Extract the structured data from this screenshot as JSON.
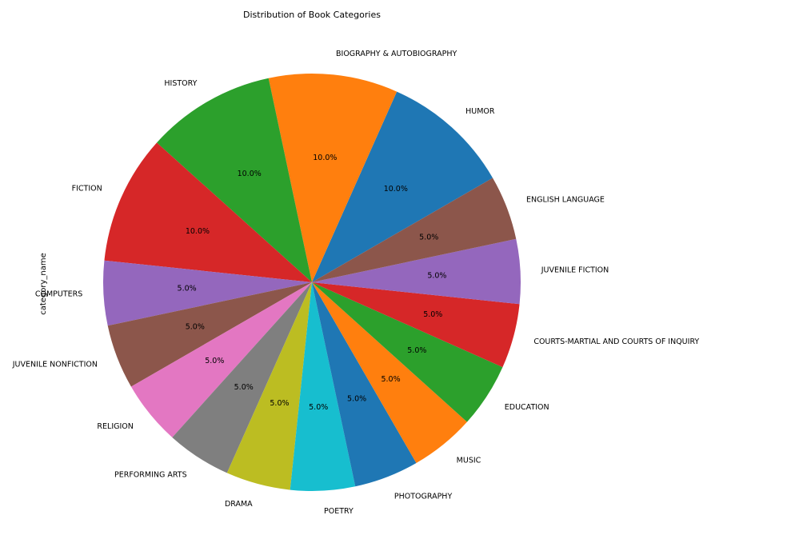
{
  "chart_data": {
    "type": "pie",
    "title": "Distribution of Book Categories",
    "ylabel": "category_name",
    "start_angle_deg": 30,
    "direction": "counterclockwise",
    "slices": [
      {
        "label": "HUMOR",
        "value": 10.0,
        "pct": "10.0%",
        "color": "#1f77b4"
      },
      {
        "label": "BIOGRAPHY & AUTOBIOGRAPHY",
        "value": 10.0,
        "pct": "10.0%",
        "color": "#ff7f0e"
      },
      {
        "label": "HISTORY",
        "value": 10.0,
        "pct": "10.0%",
        "color": "#2ca02c"
      },
      {
        "label": "FICTION",
        "value": 10.0,
        "pct": "10.0%",
        "color": "#d62728"
      },
      {
        "label": "COMPUTERS",
        "value": 5.0,
        "pct": "5.0%",
        "color": "#9467bd"
      },
      {
        "label": "JUVENILE NONFICTION",
        "value": 5.0,
        "pct": "5.0%",
        "color": "#8c564b"
      },
      {
        "label": "RELIGION",
        "value": 5.0,
        "pct": "5.0%",
        "color": "#e377c2"
      },
      {
        "label": "PERFORMING ARTS",
        "value": 5.0,
        "pct": "5.0%",
        "color": "#7f7f7f"
      },
      {
        "label": "DRAMA",
        "value": 5.0,
        "pct": "5.0%",
        "color": "#bcbd22"
      },
      {
        "label": "POETRY",
        "value": 5.0,
        "pct": "5.0%",
        "color": "#17becf"
      },
      {
        "label": "PHOTOGRAPHY",
        "value": 5.0,
        "pct": "5.0%",
        "color": "#1f77b4"
      },
      {
        "label": "MUSIC",
        "value": 5.0,
        "pct": "5.0%",
        "color": "#ff7f0e"
      },
      {
        "label": "EDUCATION",
        "value": 5.0,
        "pct": "5.0%",
        "color": "#2ca02c"
      },
      {
        "label": "COURTS-MARTIAL AND COURTS OF INQUIRY",
        "value": 5.0,
        "pct": "5.0%",
        "color": "#d62728"
      },
      {
        "label": "JUVENILE FICTION",
        "value": 5.0,
        "pct": "5.0%",
        "color": "#9467bd"
      },
      {
        "label": "ENGLISH LANGUAGE",
        "value": 5.0,
        "pct": "5.0%",
        "color": "#8c564b"
      }
    ]
  }
}
